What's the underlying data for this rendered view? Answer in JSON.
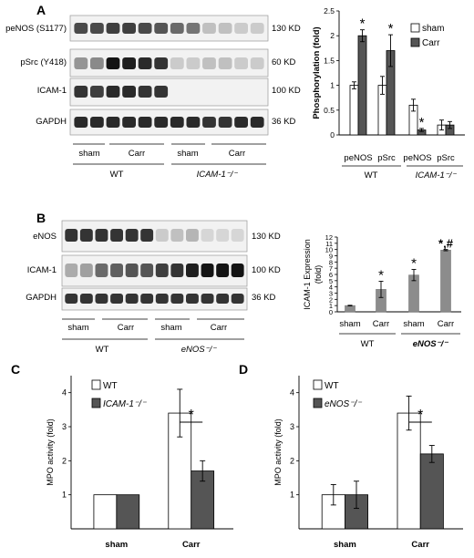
{
  "panels": [
    {
      "letter": "A"
    },
    {
      "letter": "B"
    },
    {
      "letter": "C"
    },
    {
      "letter": "D"
    }
  ],
  "blots": {
    "A": {
      "rows": [
        {
          "label": "peNOS (S1177)",
          "size": "130 KD",
          "intensity": [
            0.75,
            0.75,
            0.8,
            0.8,
            0.75,
            0.7,
            0.6,
            0.55,
            0.2,
            0.2,
            0.15,
            0.15
          ]
        },
        {
          "label": "pSrc (Y418)",
          "size": "60 KD",
          "intensity": [
            0.4,
            0.45,
            1,
            0.95,
            0.9,
            0.85,
            0.15,
            0.15,
            0.2,
            0.2,
            0.15,
            0.15
          ]
        },
        {
          "label": "ICAM-1",
          "size": "100 KD",
          "intensity": [
            0.85,
            0.8,
            0.9,
            0.9,
            0.85,
            0.85,
            0,
            0,
            0,
            0,
            0,
            0
          ]
        },
        {
          "label": "GAPDH",
          "size": "36 KD",
          "intensity": [
            0.9,
            0.9,
            0.9,
            0.9,
            0.9,
            0.9,
            0.9,
            0.9,
            0.85,
            0.85,
            0.9,
            0.9
          ]
        }
      ],
      "groups": [
        "sham",
        "Carr",
        "sham",
        "Carr"
      ],
      "genotypes": [
        "WT",
        "ICAM-1⁻/⁻"
      ]
    },
    "B": {
      "rows": [
        {
          "label": "eNOS",
          "size": "130 KD",
          "intensity": [
            0.85,
            0.85,
            0.85,
            0.85,
            0.85,
            0.85,
            0.15,
            0.2,
            0.25,
            0.1,
            0.1,
            0.1
          ]
        },
        {
          "label": "ICAM-1",
          "size": "100 KD",
          "intensity": [
            0.3,
            0.35,
            0.6,
            0.65,
            0.7,
            0.7,
            0.8,
            0.85,
            0.95,
            1,
            1,
            1
          ]
        },
        {
          "label": "GAPDH",
          "size": "36 KD",
          "intensity": [
            0.85,
            0.85,
            0.85,
            0.85,
            0.85,
            0.85,
            0.85,
            0.85,
            0.85,
            0.85,
            0.85,
            0.85
          ]
        }
      ],
      "groups": [
        "sham",
        "Carr",
        "sham",
        "Carr"
      ],
      "genotypes": [
        "WT",
        "eNOS⁻/⁻"
      ]
    }
  },
  "chart_data": [
    {
      "id": "A",
      "type": "bar",
      "ylabel": "Phosphorylation (fold)",
      "ylim": [
        0,
        2.5
      ],
      "yticks": [
        "0",
        "0.5",
        "1",
        "1.5",
        "2",
        "2.5"
      ],
      "categories": [
        "peNOS",
        "pSrc",
        "peNOS",
        "pSrc"
      ],
      "groups": [
        "WT",
        "ICAM-1⁻/⁻"
      ],
      "series": [
        {
          "name": "sham",
          "color": "#ffffff",
          "values": [
            1.0,
            1.0,
            0.6,
            0.2
          ],
          "errors": [
            0.07,
            0.18,
            0.12,
            0.1
          ]
        },
        {
          "name": "Carr",
          "color": "#555555",
          "values": [
            2.0,
            1.7,
            0.1,
            0.2
          ],
          "errors": [
            0.12,
            0.32,
            0.03,
            0.07
          ]
        }
      ],
      "annotations": [
        "*",
        "*",
        "*"
      ],
      "legend": "top-right"
    },
    {
      "id": "B",
      "type": "bar",
      "ylabel": "ICAM-1  Expression\n(fold)",
      "ylim": [
        0,
        12
      ],
      "yticks": [
        "0",
        "1",
        "2",
        "3",
        "4",
        "5",
        "6",
        "7",
        "8",
        "9",
        "10",
        "11",
        "12"
      ],
      "categories": [
        "sham",
        "Carr",
        "sham",
        "Carr"
      ],
      "groups": [
        "WT",
        "eNOS⁻/⁻"
      ],
      "values": [
        1.0,
        3.6,
        5.9,
        9.9
      ],
      "errors": [
        0.05,
        1.3,
        0.9,
        0.1
      ],
      "annotations": [
        "*",
        "*",
        "*,#"
      ]
    },
    {
      "id": "C",
      "type": "bar",
      "ylabel": "MPO activity (fold)",
      "ylim": [
        0,
        4.5
      ],
      "yticks": [
        "1",
        "2",
        "3",
        "4"
      ],
      "categories": [
        "sham",
        "Carr"
      ],
      "series": [
        {
          "name": "WT",
          "color": "#ffffff",
          "values": [
            1.0,
            3.4
          ],
          "errors": [
            0,
            0.7
          ]
        },
        {
          "name": "ICAM-1⁻/⁻",
          "color": "#555555",
          "values": [
            1.0,
            1.7
          ],
          "errors": [
            0,
            0.3
          ]
        }
      ],
      "annotations": [
        "*"
      ],
      "legend": "top-left"
    },
    {
      "id": "D",
      "type": "bar",
      "ylabel": "MPO activity (fold)",
      "ylim": [
        0,
        4.5
      ],
      "yticks": [
        "1",
        "2",
        "3",
        "4"
      ],
      "categories": [
        "sham",
        "Carr"
      ],
      "series": [
        {
          "name": "WT",
          "color": "#ffffff",
          "values": [
            1.0,
            3.4
          ],
          "errors": [
            0.3,
            0.5
          ]
        },
        {
          "name": "eNOS⁻/⁻",
          "color": "#555555",
          "values": [
            1.0,
            2.2
          ],
          "errors": [
            0.4,
            0.25
          ]
        }
      ],
      "annotations": [
        "*"
      ],
      "legend": "top-left"
    }
  ]
}
